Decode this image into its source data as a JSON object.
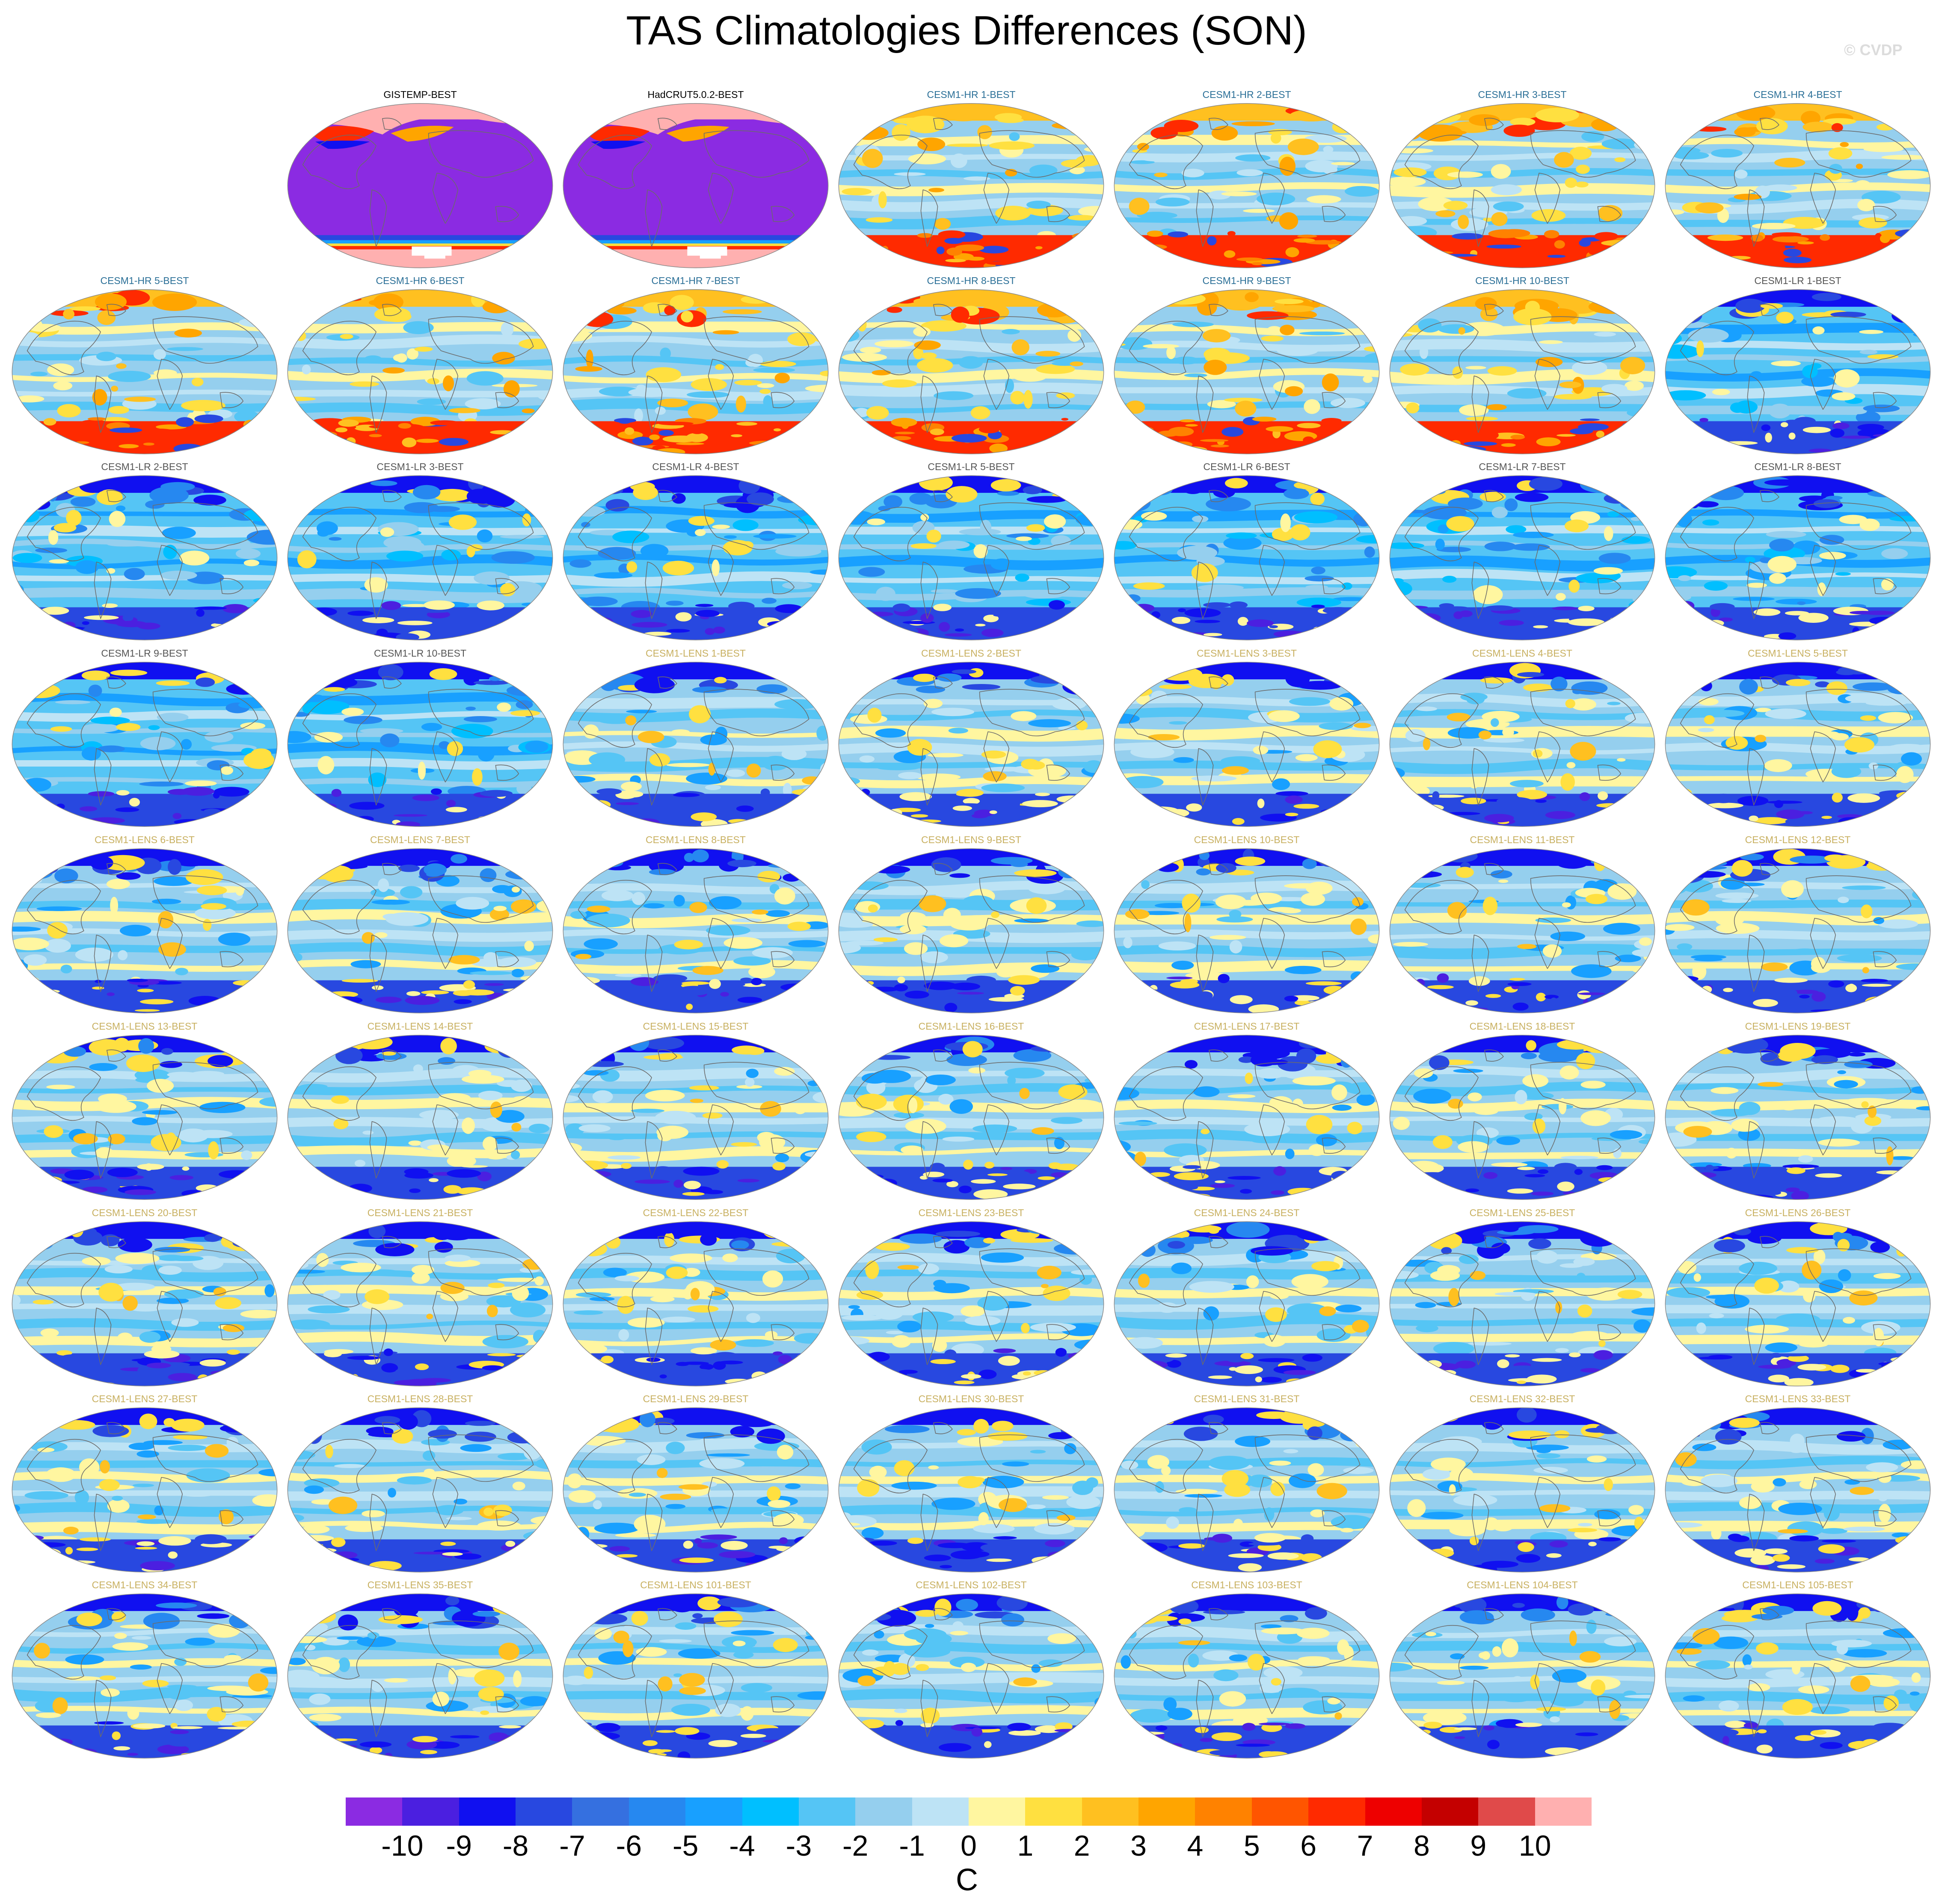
{
  "title": "TAS Climatologies Differences (SON)",
  "credit": "© CVDP",
  "colors": {
    "obs_label": "#000000",
    "hr_label": "#2a6f97",
    "lr_label": "#555555",
    "lens_label": "#c8b060",
    "coastline": "#6b6b6b"
  },
  "colorbar": {
    "unit": "C",
    "ticks": [
      "-10",
      "-9",
      "-8",
      "-7",
      "-6",
      "-5",
      "-4",
      "-3",
      "-2",
      "-1",
      "0",
      "1",
      "2",
      "3",
      "4",
      "5",
      "6",
      "7",
      "8",
      "9",
      "10"
    ],
    "colors": [
      "#8b2be2",
      "#4b1fe0",
      "#1010f0",
      "#2848e0",
      "#3570e0",
      "#2688f0",
      "#18a0ff",
      "#00bfff",
      "#55c5f5",
      "#95cfee",
      "#bde3f5",
      "#fff6a0",
      "#ffe040",
      "#ffc020",
      "#ffa500",
      "#ff8200",
      "#ff5500",
      "#ff2a00",
      "#ee0000",
      "#c40000",
      "#e04a4a",
      "#ffb0b0"
    ]
  },
  "panels": [
    {
      "label": "GISTEMP-BEST",
      "group": "obs"
    },
    {
      "label": "HadCRUT5.0.2-BEST",
      "group": "obs"
    },
    {
      "label": "CESM1-HR 1-BEST",
      "group": "hr"
    },
    {
      "label": "CESM1-HR 2-BEST",
      "group": "hr"
    },
    {
      "label": "CESM1-HR 3-BEST",
      "group": "hr"
    },
    {
      "label": "CESM1-HR 4-BEST",
      "group": "hr"
    },
    {
      "label": "CESM1-HR 5-BEST",
      "group": "hr"
    },
    {
      "label": "CESM1-HR 6-BEST",
      "group": "hr"
    },
    {
      "label": "CESM1-HR 7-BEST",
      "group": "hr"
    },
    {
      "label": "CESM1-HR 8-BEST",
      "group": "hr"
    },
    {
      "label": "CESM1-HR 9-BEST",
      "group": "hr"
    },
    {
      "label": "CESM1-HR 10-BEST",
      "group": "hr"
    },
    {
      "label": "CESM1-LR 1-BEST",
      "group": "lr"
    },
    {
      "label": "CESM1-LR 2-BEST",
      "group": "lr"
    },
    {
      "label": "CESM1-LR 3-BEST",
      "group": "lr"
    },
    {
      "label": "CESM1-LR 4-BEST",
      "group": "lr"
    },
    {
      "label": "CESM1-LR 5-BEST",
      "group": "lr"
    },
    {
      "label": "CESM1-LR 6-BEST",
      "group": "lr"
    },
    {
      "label": "CESM1-LR 7-BEST",
      "group": "lr"
    },
    {
      "label": "CESM1-LR 8-BEST",
      "group": "lr"
    },
    {
      "label": "CESM1-LR 9-BEST",
      "group": "lr"
    },
    {
      "label": "CESM1-LR 10-BEST",
      "group": "lr"
    },
    {
      "label": "CESM1-LENS 1-BEST",
      "group": "lens"
    },
    {
      "label": "CESM1-LENS 2-BEST",
      "group": "lens"
    },
    {
      "label": "CESM1-LENS 3-BEST",
      "group": "lens"
    },
    {
      "label": "CESM1-LENS 4-BEST",
      "group": "lens"
    },
    {
      "label": "CESM1-LENS 5-BEST",
      "group": "lens"
    },
    {
      "label": "CESM1-LENS 6-BEST",
      "group": "lens"
    },
    {
      "label": "CESM1-LENS 7-BEST",
      "group": "lens"
    },
    {
      "label": "CESM1-LENS 8-BEST",
      "group": "lens"
    },
    {
      "label": "CESM1-LENS 9-BEST",
      "group": "lens"
    },
    {
      "label": "CESM1-LENS 10-BEST",
      "group": "lens"
    },
    {
      "label": "CESM1-LENS 11-BEST",
      "group": "lens"
    },
    {
      "label": "CESM1-LENS 12-BEST",
      "group": "lens"
    },
    {
      "label": "CESM1-LENS 13-BEST",
      "group": "lens"
    },
    {
      "label": "CESM1-LENS 14-BEST",
      "group": "lens"
    },
    {
      "label": "CESM1-LENS 15-BEST",
      "group": "lens"
    },
    {
      "label": "CESM1-LENS 16-BEST",
      "group": "lens"
    },
    {
      "label": "CESM1-LENS 17-BEST",
      "group": "lens"
    },
    {
      "label": "CESM1-LENS 18-BEST",
      "group": "lens"
    },
    {
      "label": "CESM1-LENS 19-BEST",
      "group": "lens"
    },
    {
      "label": "CESM1-LENS 20-BEST",
      "group": "lens"
    },
    {
      "label": "CESM1-LENS 21-BEST",
      "group": "lens"
    },
    {
      "label": "CESM1-LENS 22-BEST",
      "group": "lens"
    },
    {
      "label": "CESM1-LENS 23-BEST",
      "group": "lens"
    },
    {
      "label": "CESM1-LENS 24-BEST",
      "group": "lens"
    },
    {
      "label": "CESM1-LENS 25-BEST",
      "group": "lens"
    },
    {
      "label": "CESM1-LENS 26-BEST",
      "group": "lens"
    },
    {
      "label": "CESM1-LENS 27-BEST",
      "group": "lens"
    },
    {
      "label": "CESM1-LENS 28-BEST",
      "group": "lens"
    },
    {
      "label": "CESM1-LENS 29-BEST",
      "group": "lens"
    },
    {
      "label": "CESM1-LENS 30-BEST",
      "group": "lens"
    },
    {
      "label": "CESM1-LENS 31-BEST",
      "group": "lens"
    },
    {
      "label": "CESM1-LENS 32-BEST",
      "group": "lens"
    },
    {
      "label": "CESM1-LENS 33-BEST",
      "group": "lens"
    },
    {
      "label": "CESM1-LENS 34-BEST",
      "group": "lens"
    },
    {
      "label": "CESM1-LENS 35-BEST",
      "group": "lens"
    },
    {
      "label": "CESM1-LENS 101-BEST",
      "group": "lens"
    },
    {
      "label": "CESM1-LENS 102-BEST",
      "group": "lens"
    },
    {
      "label": "CESM1-LENS 103-BEST",
      "group": "lens"
    },
    {
      "label": "CESM1-LENS 104-BEST",
      "group": "lens"
    },
    {
      "label": "CESM1-LENS 105-BEST",
      "group": "lens"
    }
  ]
}
